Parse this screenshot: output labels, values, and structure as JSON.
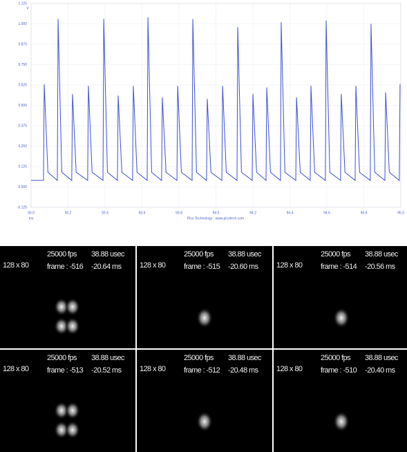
{
  "chart_data": {
    "type": "line",
    "y_unit": "V",
    "x_unit": "ms",
    "footer": "Pico Technology - www.picotech.com",
    "color": "#3b4fd6",
    "grid": true,
    "ylim": [
      -0.125,
      1.125
    ],
    "yticks": [
      {
        "value": 1.125,
        "label": "1.125"
      },
      {
        "value": 1.0,
        "label": "1.000"
      },
      {
        "value": 0.875,
        "label": "0.875"
      },
      {
        "value": 0.75,
        "label": "0.750"
      },
      {
        "value": 0.625,
        "label": "0.625"
      },
      {
        "value": 0.5,
        "label": "0.500"
      },
      {
        "value": 0.375,
        "label": "0.375"
      },
      {
        "value": 0.25,
        "label": "0.250"
      },
      {
        "value": 0.125,
        "label": "0.125"
      },
      {
        "value": 0,
        "label": "0.000"
      },
      {
        "value": -0.125,
        "label": "-0.125"
      }
    ],
    "xlim": [
      93.0,
      95.0
    ],
    "xticks": [
      {
        "value": 93.0,
        "label": "93.0"
      },
      93.2,
      93.4,
      93.6,
      93.8,
      {
        "value": 94.0,
        "label": "94.0"
      },
      94.2,
      94.4,
      94.6,
      94.8,
      {
        "value": 95.0,
        "label": "95.0"
      }
    ],
    "x": [
      93.0,
      93.067,
      93.071,
      93.091,
      93.142,
      93.146,
      93.166,
      93.22,
      93.224,
      93.244,
      93.306,
      93.31,
      93.33,
      93.389,
      93.393,
      93.413,
      93.467,
      93.471,
      93.491,
      93.549,
      93.553,
      93.573,
      93.628,
      93.632,
      93.652,
      93.706,
      93.71,
      93.73,
      93.789,
      93.793,
      93.813,
      93.871,
      93.875,
      93.895,
      93.949,
      93.953,
      93.973,
      94.032,
      94.036,
      94.056,
      94.114,
      94.118,
      94.138,
      94.196,
      94.2,
      94.22,
      94.271,
      94.275,
      94.295,
      94.349,
      94.353,
      94.373,
      94.432,
      94.436,
      94.456,
      94.51,
      94.514,
      94.534,
      94.592,
      94.596,
      94.616,
      94.674,
      94.678,
      94.698,
      94.753,
      94.757,
      94.777,
      94.835,
      94.839,
      94.859,
      94.914,
      94.918,
      94.938,
      94.992,
      94.996
    ],
    "values": [
      0.04,
      0.04,
      0.63,
      0.09,
      0.04,
      1.03,
      0.09,
      0.04,
      0.57,
      0.09,
      0.04,
      0.62,
      0.09,
      0.04,
      1.03,
      0.09,
      0.04,
      0.56,
      0.09,
      0.04,
      0.62,
      0.09,
      0.04,
      1.04,
      0.09,
      0.04,
      0.55,
      0.09,
      0.04,
      0.62,
      0.09,
      0.04,
      1.03,
      0.09,
      0.04,
      0.54,
      0.09,
      0.04,
      0.62,
      0.09,
      0.04,
      0.98,
      0.09,
      0.04,
      0.57,
      0.09,
      0.04,
      0.61,
      0.09,
      0.04,
      1.01,
      0.09,
      0.04,
      0.55,
      0.09,
      0.04,
      0.62,
      0.09,
      0.04,
      1.02,
      0.09,
      0.04,
      0.57,
      0.09,
      0.04,
      0.62,
      0.09,
      0.04,
      1.0,
      0.09,
      0.04,
      0.58,
      0.09,
      0.04,
      0.63
    ]
  },
  "frames": [
    {
      "size": "128 x 80",
      "fps": "25000 fps",
      "exposure": "38.88 usec",
      "frame": "frame : -516",
      "time": "-20.64 ms"
    },
    {
      "size": "128 x 80",
      "fps": "25000 fps",
      "exposure": "38.88 usec",
      "frame": "frame : -515",
      "time": "-20.60 ms"
    },
    {
      "size": "128 x 80",
      "fps": "25000 fps",
      "exposure": "38.88 usec",
      "frame": "frame : -514",
      "time": "-20.56 ms"
    },
    {
      "size": "128 x 80",
      "fps": "25000 fps",
      "exposure": "38.88 usec",
      "frame": "frame : -513",
      "time": "-20.52 ms"
    },
    {
      "size": "128 x 80",
      "fps": "25000 fps",
      "exposure": "38.88 usec",
      "frame": "frame : -512",
      "time": "-20.48 ms"
    },
    {
      "size": "128 x 80",
      "fps": "25000 fps",
      "exposure": "38.88 usec",
      "frame": "frame : -510",
      "time": "-20.40 ms"
    }
  ]
}
